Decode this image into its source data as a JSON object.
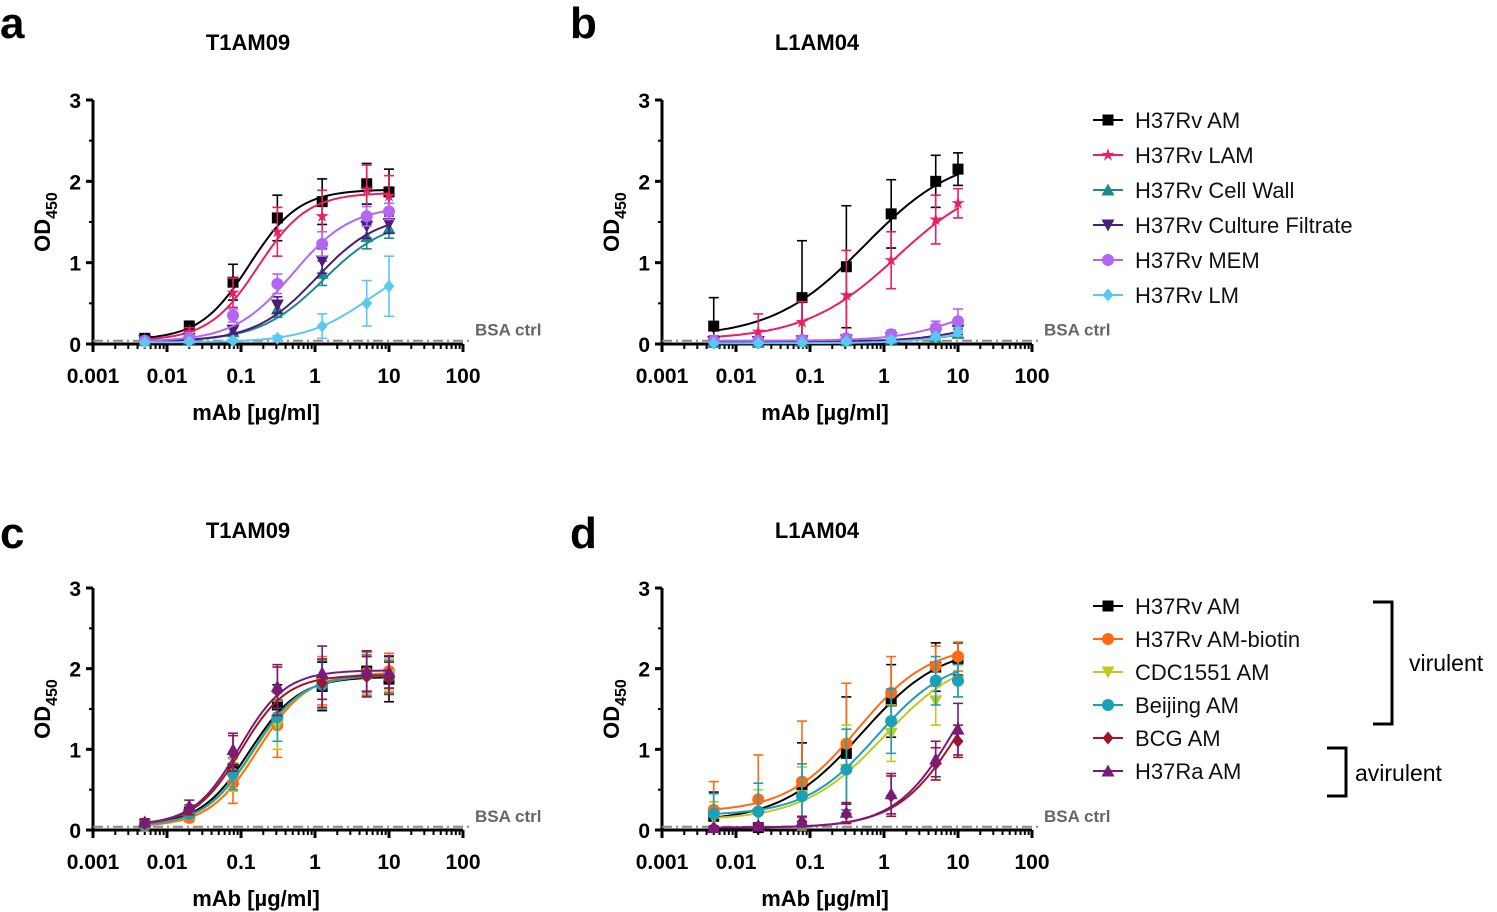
{
  "figure": {
    "colors": {
      "black": "#000000",
      "pink": "#e91e63",
      "teal": "#1b8a8a",
      "indigo": "#4b1d7a",
      "violet": "#b266f2",
      "skyblue": "#5cc8f2",
      "orange": "#ff6a13",
      "olive": "#c2c81e",
      "cyan": "#1aa0b8",
      "maroon": "#a3151f",
      "purple": "#7a1a7a",
      "bsa": "#888888"
    },
    "legend_top": [
      {
        "label": "H37Rv AM",
        "color": "#000000",
        "marker": "square"
      },
      {
        "label": "H37Rv LAM",
        "color": "#e91e63",
        "marker": "star"
      },
      {
        "label": "H37Rv Cell Wall",
        "color": "#1b8a8a",
        "marker": "triangle-up"
      },
      {
        "label": "H37Rv Culture Filtrate",
        "color": "#4b1d7a",
        "marker": "triangle-down"
      },
      {
        "label": "H37Rv MEM",
        "color": "#b266f2",
        "marker": "circle"
      },
      {
        "label": "H37Rv LM",
        "color": "#5cc8f2",
        "marker": "diamond"
      }
    ],
    "legend_bottom": [
      {
        "label": "H37Rv AM",
        "color": "#000000",
        "marker": "square"
      },
      {
        "label": "H37Rv AM-biotin",
        "color": "#ff6a13",
        "marker": "circle"
      },
      {
        "label": "CDC1551 AM",
        "color": "#c2c81e",
        "marker": "triangle-down"
      },
      {
        "label": "Beijing AM",
        "color": "#1aa0b8",
        "marker": "circle"
      },
      {
        "label": "BCG AM",
        "color": "#a3151f",
        "marker": "diamond"
      },
      {
        "label": "H37Ra AM",
        "color": "#7a1a7a",
        "marker": "triangle-up"
      }
    ],
    "groups": {
      "virulent": "virulent",
      "avirulent": "avirulent"
    }
  },
  "chart_data": [
    {
      "panel": "a",
      "type": "scatter",
      "title": "T1AM09",
      "xlabel": "mAb [µg/ml]",
      "ylabel_main": "OD",
      "ylabel_sub": "450",
      "xscale": "log",
      "xlim": [
        0.001,
        100
      ],
      "ylim": [
        0,
        3
      ],
      "xticks": [
        "0.001",
        "0.01",
        "0.1",
        "1",
        "10",
        "100"
      ],
      "yticks": [
        "0",
        "1",
        "2",
        "3"
      ],
      "baseline": {
        "label": "BSA ctrl",
        "y": 0.04
      },
      "x": [
        0.005,
        0.02,
        0.078,
        0.31,
        1.25,
        5,
        10
      ],
      "series": [
        {
          "name": "H37Rv AM",
          "color": "#000000",
          "marker": "square",
          "values": [
            0.07,
            0.22,
            0.76,
            1.55,
            1.75,
            1.97,
            1.87
          ],
          "err": [
            0.04,
            0.06,
            0.22,
            0.28,
            0.28,
            0.25,
            0.28
          ],
          "fit": {
            "bottom": 0.05,
            "top": 1.9,
            "ec50": 0.13,
            "hill": 1.3
          }
        },
        {
          "name": "H37Rv LAM",
          "color": "#e91e63",
          "marker": "star",
          "values": [
            0.05,
            0.15,
            0.63,
            1.38,
            1.57,
            1.9,
            1.82
          ],
          "err": [
            0.03,
            0.05,
            0.18,
            0.3,
            0.32,
            0.3,
            0.25
          ],
          "fit": {
            "bottom": 0.04,
            "top": 1.86,
            "ec50": 0.17,
            "hill": 1.3
          }
        },
        {
          "name": "H37Rv Cell Wall",
          "color": "#1b8a8a",
          "marker": "triangle-up",
          "values": [
            0.04,
            0.06,
            0.15,
            0.43,
            0.87,
            1.32,
            1.42
          ],
          "err": [
            0.02,
            0.03,
            0.05,
            0.1,
            0.15,
            0.15,
            0.12
          ],
          "fit": {
            "bottom": 0.03,
            "top": 1.55,
            "ec50": 1.3,
            "hill": 1.0
          }
        },
        {
          "name": "H37Rv Culture Filtrate",
          "color": "#4b1d7a",
          "marker": "triangle-down",
          "values": [
            0.04,
            0.07,
            0.17,
            0.48,
            1.02,
            1.45,
            1.48
          ],
          "err": [
            0.02,
            0.03,
            0.05,
            0.1,
            0.15,
            0.15,
            0.12
          ],
          "fit": {
            "bottom": 0.03,
            "top": 1.6,
            "ec50": 1.05,
            "hill": 1.05
          }
        },
        {
          "name": "H37Rv MEM",
          "color": "#b266f2",
          "marker": "circle",
          "values": [
            0.04,
            0.08,
            0.35,
            0.74,
            1.23,
            1.57,
            1.63
          ],
          "err": [
            0.02,
            0.03,
            0.08,
            0.12,
            0.15,
            0.12,
            0.1
          ],
          "fit": {
            "bottom": 0.03,
            "top": 1.7,
            "ec50": 0.5,
            "hill": 1.1
          }
        },
        {
          "name": "H37Rv LM",
          "color": "#5cc8f2",
          "marker": "diamond",
          "values": [
            0.02,
            0.03,
            0.04,
            0.07,
            0.22,
            0.5,
            0.71
          ],
          "err": [
            0.01,
            0.01,
            0.02,
            0.03,
            0.15,
            0.28,
            0.37
          ],
          "fit": {
            "bottom": 0.02,
            "top": 1.1,
            "ec50": 5.5,
            "hill": 1.0
          }
        }
      ]
    },
    {
      "panel": "b",
      "type": "scatter",
      "title": "L1AM04",
      "xlabel": "mAb [µg/ml]",
      "ylabel_main": "OD",
      "ylabel_sub": "450",
      "xscale": "log",
      "xlim": [
        0.001,
        100
      ],
      "ylim": [
        0,
        3
      ],
      "xticks": [
        "0.001",
        "0.01",
        "0.1",
        "1",
        "10",
        "100"
      ],
      "yticks": [
        "0",
        "1",
        "2",
        "3"
      ],
      "baseline": {
        "label": "BSA ctrl",
        "y": 0.04
      },
      "x": [
        0.005,
        0.02,
        0.078,
        0.31,
        1.25,
        5,
        10
      ],
      "series": [
        {
          "name": "H37Rv AM",
          "color": "#000000",
          "marker": "square",
          "values": [
            0.22,
            0.03,
            0.57,
            0.95,
            1.6,
            2.0,
            2.15
          ],
          "err": [
            0.35,
            0.0,
            0.7,
            0.75,
            0.42,
            0.32,
            0.2
          ],
          "fit": {
            "bottom": 0.08,
            "top": 2.35,
            "ec50": 0.55,
            "hill": 0.7
          }
        },
        {
          "name": "H37Rv LAM",
          "color": "#e91e63",
          "marker": "star",
          "values": [
            0.05,
            0.15,
            0.27,
            0.6,
            1.03,
            1.53,
            1.73
          ],
          "err": [
            0.05,
            0.22,
            0.25,
            0.55,
            0.35,
            0.3,
            0.18
          ],
          "fit": {
            "bottom": 0.05,
            "top": 2.1,
            "ec50": 1.5,
            "hill": 0.7
          }
        },
        {
          "name": "H37Rv Cell Wall",
          "color": "#1b8a8a",
          "marker": "triangle-up",
          "values": [
            0.02,
            0.02,
            0.03,
            0.04,
            0.06,
            0.08,
            0.13
          ],
          "err": [
            0.01,
            0.01,
            0.01,
            0.02,
            0.02,
            0.03,
            0.05
          ],
          "fit": {
            "bottom": 0.02,
            "top": 0.4,
            "ec50": 30,
            "hill": 1.0
          }
        },
        {
          "name": "H37Rv Culture Filtrate",
          "color": "#4b1d7a",
          "marker": "triangle-down",
          "values": [
            0.03,
            0.03,
            0.04,
            0.05,
            0.08,
            0.12,
            0.17
          ],
          "err": [
            0.01,
            0.01,
            0.02,
            0.02,
            0.03,
            0.04,
            0.05
          ],
          "fit": {
            "bottom": 0.03,
            "top": 0.45,
            "ec50": 25,
            "hill": 1.0
          }
        },
        {
          "name": "H37Rv MEM",
          "color": "#b266f2",
          "marker": "circle",
          "values": [
            0.04,
            0.04,
            0.05,
            0.07,
            0.12,
            0.2,
            0.28
          ],
          "err": [
            0.02,
            0.02,
            0.03,
            0.04,
            0.05,
            0.08,
            0.15
          ],
          "fit": {
            "bottom": 0.04,
            "top": 0.6,
            "ec50": 12,
            "hill": 1.0
          }
        },
        {
          "name": "H37Rv LM",
          "color": "#5cc8f2",
          "marker": "diamond",
          "values": [
            0.01,
            0.01,
            0.02,
            0.03,
            0.05,
            0.09,
            0.15
          ],
          "err": [
            0.01,
            0.01,
            0.01,
            0.02,
            0.03,
            0.04,
            0.05
          ],
          "fit": {
            "bottom": 0.01,
            "top": 0.4,
            "ec50": 25,
            "hill": 1.0
          }
        }
      ]
    },
    {
      "panel": "c",
      "type": "scatter",
      "title": "T1AM09",
      "xlabel": "mAb [µg/ml]",
      "ylabel_main": "OD",
      "ylabel_sub": "450",
      "xscale": "log",
      "xlim": [
        0.001,
        100
      ],
      "ylim": [
        0,
        3
      ],
      "xticks": [
        "0.001",
        "0.01",
        "0.1",
        "1",
        "10",
        "100"
      ],
      "yticks": [
        "0",
        "1",
        "2",
        "3"
      ],
      "baseline": {
        "label": "BSA ctrl",
        "y": 0.04
      },
      "x": [
        0.005,
        0.02,
        0.078,
        0.31,
        1.25,
        5,
        10
      ],
      "series": [
        {
          "name": "H37Rv AM",
          "color": "#000000",
          "marker": "square",
          "values": [
            0.07,
            0.22,
            0.76,
            1.55,
            1.78,
            1.97,
            1.87
          ],
          "err": [
            0.04,
            0.06,
            0.2,
            0.25,
            0.3,
            0.25,
            0.28
          ],
          "fit": {
            "bottom": 0.05,
            "top": 1.9,
            "ec50": 0.13,
            "hill": 1.3
          }
        },
        {
          "name": "H37Rv AM-biotin",
          "color": "#ff6a13",
          "marker": "circle",
          "values": [
            0.05,
            0.15,
            0.58,
            1.3,
            1.85,
            1.95,
            1.97
          ],
          "err": [
            0.03,
            0.05,
            0.25,
            0.4,
            0.3,
            0.25,
            0.22
          ],
          "fit": {
            "bottom": 0.04,
            "top": 1.95,
            "ec50": 0.17,
            "hill": 1.3
          }
        },
        {
          "name": "CDC1551 AM",
          "color": "#c2c81e",
          "marker": "triangle-down",
          "values": [
            0.06,
            0.19,
            0.68,
            1.3,
            1.82,
            1.9,
            1.92
          ],
          "err": [
            0.03,
            0.05,
            0.2,
            0.3,
            0.3,
            0.25,
            0.2
          ],
          "fit": {
            "bottom": 0.05,
            "top": 1.92,
            "ec50": 0.15,
            "hill": 1.3
          }
        },
        {
          "name": "Beijing AM",
          "color": "#1aa0b8",
          "marker": "circle",
          "values": [
            0.06,
            0.2,
            0.7,
            1.4,
            1.8,
            1.92,
            1.9
          ],
          "err": [
            0.03,
            0.05,
            0.2,
            0.3,
            0.3,
            0.25,
            0.2
          ],
          "fit": {
            "bottom": 0.05,
            "top": 1.92,
            "ec50": 0.145,
            "hill": 1.3
          }
        },
        {
          "name": "BCG AM",
          "color": "#a3151f",
          "marker": "diamond",
          "values": [
            0.08,
            0.25,
            0.95,
            1.72,
            1.82,
            1.9,
            1.88
          ],
          "err": [
            0.04,
            0.06,
            0.22,
            0.3,
            0.3,
            0.25,
            0.2
          ],
          "fit": {
            "bottom": 0.06,
            "top": 1.92,
            "ec50": 0.1,
            "hill": 1.4
          }
        },
        {
          "name": "H37Ra AM",
          "color": "#7a1a7a",
          "marker": "triangle-up",
          "values": [
            0.1,
            0.3,
            1.0,
            1.78,
            1.95,
            1.97,
            1.96
          ],
          "err": [
            0.04,
            0.07,
            0.2,
            0.27,
            0.33,
            0.25,
            0.2
          ],
          "fit": {
            "bottom": 0.06,
            "top": 1.98,
            "ec50": 0.095,
            "hill": 1.4
          }
        }
      ]
    },
    {
      "panel": "d",
      "type": "scatter",
      "title": "L1AM04",
      "xlabel": "mAb [µg/ml]",
      "ylabel_main": "OD",
      "ylabel_sub": "450",
      "xscale": "log",
      "xlim": [
        0.001,
        100
      ],
      "ylim": [
        0,
        3
      ],
      "xticks": [
        "0.001",
        "0.01",
        "0.1",
        "1",
        "10",
        "100"
      ],
      "yticks": [
        "0",
        "1",
        "2",
        "3"
      ],
      "baseline": {
        "label": "BSA ctrl",
        "y": 0.04
      },
      "x": [
        0.005,
        0.02,
        0.078,
        0.31,
        1.25,
        5,
        10
      ],
      "series": [
        {
          "name": "H37Rv AM",
          "color": "#000000",
          "marker": "square",
          "values": [
            0.17,
            0.03,
            0.53,
            0.95,
            1.6,
            2.02,
            2.12
          ],
          "err": [
            0.3,
            0.0,
            0.55,
            0.7,
            0.45,
            0.3,
            0.2
          ],
          "fit": {
            "bottom": 0.1,
            "top": 2.3,
            "ec50": 0.5,
            "hill": 0.8
          }
        },
        {
          "name": "H37Rv AM-biotin",
          "color": "#ff6a13",
          "marker": "circle",
          "values": [
            0.25,
            0.38,
            0.6,
            1.07,
            1.7,
            2.03,
            2.15
          ],
          "err": [
            0.35,
            0.55,
            0.75,
            0.75,
            0.45,
            0.25,
            0.18
          ],
          "fit": {
            "bottom": 0.22,
            "top": 2.3,
            "ec50": 0.45,
            "hill": 0.9
          }
        },
        {
          "name": "CDC1551 AM",
          "color": "#c2c81e",
          "marker": "triangle-down",
          "values": [
            0.15,
            0.2,
            0.43,
            0.75,
            1.2,
            1.6,
            1.85
          ],
          "err": [
            0.2,
            0.3,
            0.35,
            0.55,
            0.35,
            0.3,
            0.2
          ],
          "fit": {
            "bottom": 0.12,
            "top": 2.2,
            "ec50": 1.0,
            "hill": 0.8
          }
        },
        {
          "name": "Beijing AM",
          "color": "#1aa0b8",
          "marker": "circle",
          "values": [
            0.2,
            0.23,
            0.42,
            0.75,
            1.35,
            1.85,
            1.85
          ],
          "err": [
            0.25,
            0.35,
            0.4,
            0.5,
            0.4,
            0.3,
            0.2
          ],
          "fit": {
            "bottom": 0.18,
            "top": 2.15,
            "ec50": 0.8,
            "hill": 0.9
          }
        },
        {
          "name": "BCG AM",
          "color": "#a3151f",
          "marker": "diamond",
          "values": [
            0.03,
            0.05,
            0.1,
            0.2,
            0.42,
            0.82,
            1.1
          ],
          "err": [
            0.02,
            0.03,
            0.06,
            0.12,
            0.25,
            0.2,
            0.2
          ],
          "fit": {
            "bottom": 0.03,
            "top": 2.6,
            "ec50": 12,
            "hill": 1.0
          }
        },
        {
          "name": "H37Ra AM",
          "color": "#7a1a7a",
          "marker": "triangle-up",
          "values": [
            0.03,
            0.05,
            0.11,
            0.22,
            0.45,
            0.88,
            1.25
          ],
          "err": [
            0.02,
            0.03,
            0.06,
            0.12,
            0.25,
            0.22,
            0.32
          ],
          "fit": {
            "bottom": 0.03,
            "top": 2.6,
            "ec50": 10,
            "hill": 1.05
          }
        }
      ]
    }
  ]
}
